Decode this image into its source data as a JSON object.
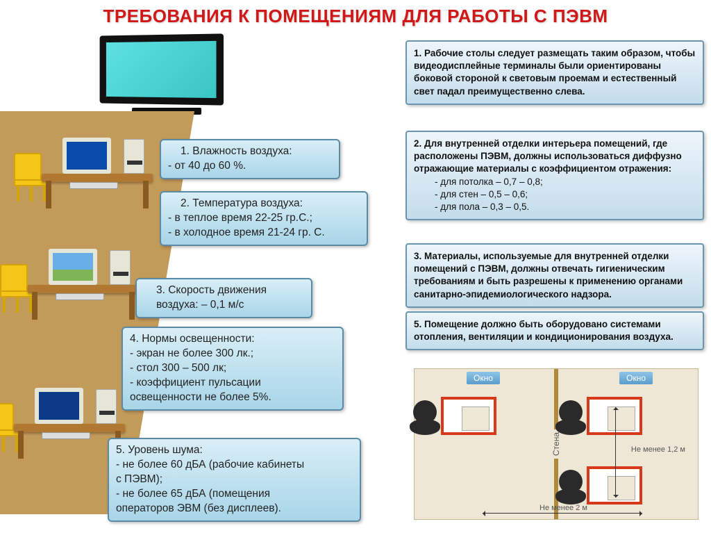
{
  "title": "ТРЕБОВАНИЯ К ПОМЕЩЕНИЯМ ДЛЯ РАБОТЫ С ПЭВМ",
  "center_boxes": {
    "b1": {
      "head": "1. Влажность воздуха:",
      "l1": "- от 40 до 60 %."
    },
    "b2": {
      "head": "2. Температура воздуха:",
      "l1": "- в теплое время 22-25 гр.С.;",
      "l2": "- в холодное время 21-24 гр. С."
    },
    "b3": {
      "head": "3. Скорость движения",
      "l1": "воздуха:   – 0,1 м/с"
    },
    "b4": {
      "head": "4. Нормы освещенности:",
      "l1": "- экран не более 300 лк.;",
      "l2": "- стол 300 – 500 лк;",
      "l3": "- коэффициент пульсации",
      "l4": "освещенности не более 5%."
    },
    "b5": {
      "head": "5. Уровень шума:",
      "l1": "- не более 60 дБА (рабочие кабинеты",
      "l2": "с ПЭВМ);",
      "l3": "- не более 65 дБА (помещения",
      "l4": "операторов ЭВМ (без дисплеев)."
    }
  },
  "right_boxes": {
    "r1": "1. Рабочие столы следует размещать  таким образом, чтобы видеодисплейные терминалы были ориентированы боковой стороной к световым проемам  и естественный свет падал преимущественно слева.",
    "r2": {
      "head": "2. Для внутренней отделки интерьера помещений, где расположены ПЭВМ, должны использоваться диффузно отражающие материалы с коэффициентом отражения:",
      "s1": "-  для потолка   –  0,7 – 0,8;",
      "s2": "-  для стен   – 0,5 – 0,6;",
      "s3": "-  для пола   – 0,3 – 0,5."
    },
    "r3": "3. Материалы, используемые для внутренней отделки помещений с ПЭВМ, должны  отвечать гигиеническим требованиям и быть разрешены к применению органами санитарно-эпидемиологического надзора.",
    "r5": "5. Помещение должно быть оборудовано системами отопления, вентиляции и кондиционирования воздуха."
  },
  "diagram": {
    "window_label": "Окно",
    "wall_label": "Стена",
    "dim_v": "Не менее 1,2 м",
    "dim_h": "Не менее 2 м"
  },
  "colors": {
    "title": "#d01818",
    "floor": "#c29a5a",
    "chair": "#f5c518",
    "desk": "#b07830",
    "box_border": "#5a8aa5",
    "box_bg_top": "#d9eef7",
    "box_bg_bottom": "#a8d5e8",
    "right_border": "#6a95ad",
    "diagram_bg": "#efe7d6",
    "diagram_desk_border": "#d63a1a",
    "window_badge": "#5a9ccc"
  }
}
